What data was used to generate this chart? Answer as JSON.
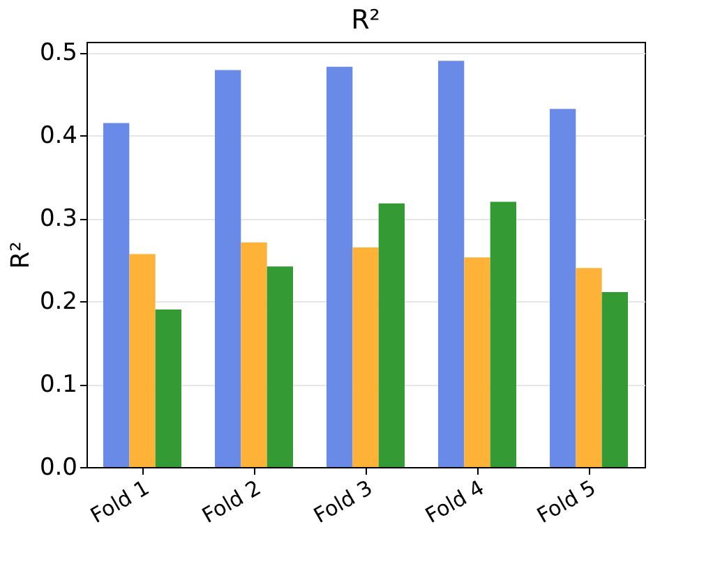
{
  "chart_data": {
    "type": "bar",
    "title": "R²",
    "ylabel": "R²",
    "categories": [
      "Fold 1",
      "Fold 2",
      "Fold 3",
      "Fold 4",
      "Fold 5"
    ],
    "series": [
      {
        "color": "#6a8ae8",
        "values": [
          0.415,
          0.479,
          0.483,
          0.49,
          0.432
        ]
      },
      {
        "color": "#ffb238",
        "values": [
          0.257,
          0.271,
          0.265,
          0.253,
          0.24
        ]
      },
      {
        "color": "#349a34",
        "values": [
          0.19,
          0.242,
          0.318,
          0.32,
          0.211
        ]
      }
    ],
    "ylim": [
      0,
      0.513
    ],
    "yticks": [
      {
        "value": 0,
        "label": "0.0"
      },
      0.1,
      0.2,
      0.3,
      0.4,
      0.5
    ],
    "grid": "y",
    "legend": false
  }
}
